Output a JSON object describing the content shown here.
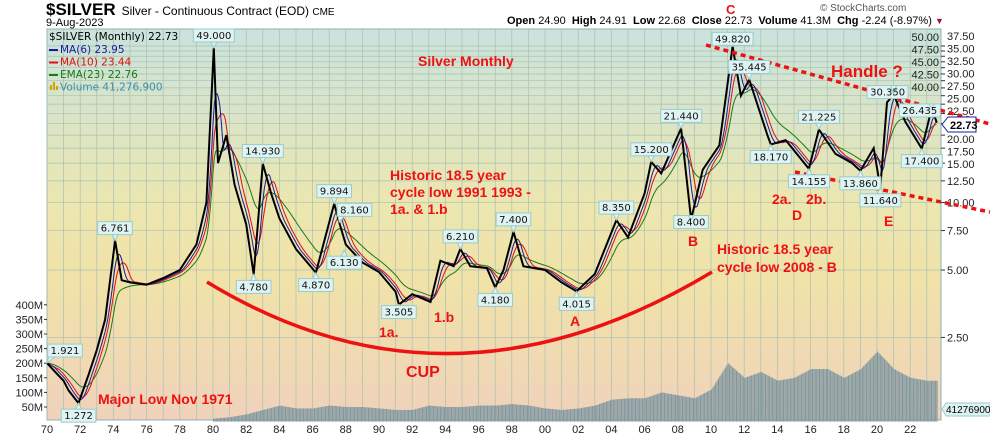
{
  "header": {
    "symbol": "$SILVER",
    "description": "Silver - Continuous Contract (EOD)",
    "exchange": "CME",
    "date": "9-Aug-2023",
    "brand": "© StockCharts.com",
    "open_label": "Open",
    "open": "24.90",
    "high_label": "High",
    "high": "24.91",
    "low_label": "Low",
    "low": "22.68",
    "close_label": "Close",
    "close": "22.73",
    "volume_label": "Volume",
    "volume": "41.3M",
    "chg_label": "Chg",
    "chg": "-2.24 (-8.97%)"
  },
  "legend": {
    "main": "$SILVER (Monthly) 22.73",
    "ma6": "MA(6) 23.95",
    "ma10": "MA(10) 23.44",
    "ema23": "EMA(23) 22.76",
    "volume": "Volume 41,276,900"
  },
  "colors": {
    "price": "#000000",
    "ma6": "#1a1aa0",
    "ma10": "#e01010",
    "ema23": "#1a7a1a",
    "volume": "#7f97a0",
    "annotation": "#ee1111"
  },
  "annotations": {
    "title": "Silver Monthly",
    "handle": "Handle ?",
    "historic1_l1": "Historic 18.5 year",
    "historic1_l2": "cycle low 1991 1993 -",
    "historic1_l3": "1a. & 1.b",
    "historic2_l1": "Historic 18.5 year",
    "historic2_l2": "cycle low 2008 - B",
    "cup": "CUP",
    "major_low": "Major Low Nov 1971",
    "la": "1a.",
    "lb": "1.b",
    "A": "A",
    "B": "B",
    "C": "C",
    "D": "D",
    "E": "E",
    "l2a": "2a.",
    "l2b": "2b."
  },
  "chart_data": {
    "type": "line",
    "scale": "log",
    "grid": true,
    "x_ticks": [
      "70",
      "72",
      "74",
      "76",
      "78",
      "80",
      "82",
      "84",
      "86",
      "88",
      "90",
      "92",
      "94",
      "96",
      "98",
      "00",
      "02",
      "04",
      "06",
      "08",
      "10",
      "12",
      "14",
      "16",
      "18",
      "20",
      "22"
    ],
    "y_ticks": [
      "50.00",
      "47.50",
      "45.00",
      "42.50",
      "40.00",
      "37.50",
      "35.00",
      "32.50",
      "30.00",
      "27.50",
      "25.00",
      "22.50",
      "20.00",
      "17.50",
      "15.00",
      "12.50",
      "10.00",
      "7.50",
      "5.00",
      "2.50"
    ],
    "volume_ticks": [
      "400M",
      "350M",
      "300M",
      "250M",
      "200M",
      "150M",
      "100M",
      "50M"
    ],
    "last_price_label": "22.73",
    "last_volume_label": "41276900",
    "price_path": [
      [
        1970.0,
        1.921
      ],
      [
        1970.5,
        1.75
      ],
      [
        1971.0,
        1.6
      ],
      [
        1971.3,
        1.45
      ],
      [
        1971.9,
        1.272
      ],
      [
        1972.5,
        1.7
      ],
      [
        1973.0,
        2.2
      ],
      [
        1973.5,
        3.0
      ],
      [
        1974.1,
        6.761
      ],
      [
        1974.5,
        4.5
      ],
      [
        1975,
        4.4
      ],
      [
        1976,
        4.3
      ],
      [
        1977,
        4.6
      ],
      [
        1978,
        5.0
      ],
      [
        1979,
        6.5
      ],
      [
        1979.6,
        10
      ],
      [
        1980.05,
        49.0
      ],
      [
        1980.3,
        15
      ],
      [
        1980.8,
        20
      ],
      [
        1981.3,
        12
      ],
      [
        1982.0,
        8
      ],
      [
        1982.45,
        4.78
      ],
      [
        1983.0,
        14.93
      ],
      [
        1983.5,
        11
      ],
      [
        1984,
        8.5
      ],
      [
        1985,
        6.2
      ],
      [
        1986.2,
        4.87
      ],
      [
        1987.3,
        9.894
      ],
      [
        1987.6,
        8.16
      ],
      [
        1988,
        6.5
      ],
      [
        1989,
        5.4
      ],
      [
        1990,
        4.9
      ],
      [
        1991,
        4.0
      ],
      [
        1991.2,
        3.505
      ],
      [
        1992,
        3.9
      ],
      [
        1993.1,
        3.6
      ],
      [
        1993.7,
        5.5
      ],
      [
        1994.5,
        5.2
      ],
      [
        1994.9,
        6.21
      ],
      [
        1995.5,
        5.2
      ],
      [
        1996.5,
        5.1
      ],
      [
        1997.0,
        4.18
      ],
      [
        1997.5,
        5.0
      ],
      [
        1998.1,
        7.4
      ],
      [
        1998.7,
        5.2
      ],
      [
        2000,
        5.0
      ],
      [
        2001,
        4.4
      ],
      [
        2001.9,
        4.015
      ],
      [
        2003,
        4.8
      ],
      [
        2004.3,
        8.35
      ],
      [
        2005,
        7
      ],
      [
        2006,
        11
      ],
      [
        2006.4,
        15.2
      ],
      [
        2007,
        13.5
      ],
      [
        2008.2,
        21.44
      ],
      [
        2008.8,
        8.4
      ],
      [
        2009.5,
        14
      ],
      [
        2010.5,
        18
      ],
      [
        2011.3,
        49.82
      ],
      [
        2011.8,
        30
      ],
      [
        2012.3,
        35.445
      ],
      [
        2013.4,
        20
      ],
      [
        2013.6,
        18.17
      ],
      [
        2014.5,
        19
      ],
      [
        2015.9,
        14.155
      ],
      [
        2016.5,
        21.225
      ],
      [
        2017.5,
        16.5
      ],
      [
        2018.5,
        15
      ],
      [
        2019.0,
        13.86
      ],
      [
        2019.8,
        17.5
      ],
      [
        2020.2,
        11.64
      ],
      [
        2020.6,
        28
      ],
      [
        2021.0,
        30.35
      ],
      [
        2021.7,
        23
      ],
      [
        2022.7,
        17.4
      ],
      [
        2023.3,
        26.435
      ],
      [
        2023.6,
        22.73
      ]
    ],
    "callouts": [
      {
        "label": "1.921",
        "x": 1970.0,
        "y": 1.921,
        "pos": "above"
      },
      {
        "label": "1.272",
        "x": 1971.9,
        "y": 1.272,
        "pos": "below"
      },
      {
        "label": "6.761",
        "x": 1974.1,
        "y": 6.761,
        "pos": "above"
      },
      {
        "label": "49.000",
        "x": 1980.05,
        "y": 49.0,
        "pos": "above"
      },
      {
        "label": "4.780",
        "x": 1982.45,
        "y": 4.78,
        "pos": "below"
      },
      {
        "label": "14.930",
        "x": 1983.0,
        "y": 14.93,
        "pos": "above"
      },
      {
        "label": "4.870",
        "x": 1986.2,
        "y": 4.87,
        "pos": "below"
      },
      {
        "label": "9.894",
        "x": 1987.3,
        "y": 9.894,
        "pos": "above"
      },
      {
        "label": "8.160",
        "x": 1987.6,
        "y": 8.16,
        "pos": "aboveR"
      },
      {
        "label": "6.130",
        "x": 1987.9,
        "y": 6.13,
        "pos": "below"
      },
      {
        "label": "3.505",
        "x": 1991.2,
        "y": 3.505,
        "pos": "below"
      },
      {
        "label": "6.210",
        "x": 1994.9,
        "y": 6.21,
        "pos": "above"
      },
      {
        "label": "4.180",
        "x": 1997.0,
        "y": 4.18,
        "pos": "below"
      },
      {
        "label": "7.400",
        "x": 1998.1,
        "y": 7.4,
        "pos": "above"
      },
      {
        "label": "4.015",
        "x": 2001.9,
        "y": 4.015,
        "pos": "below"
      },
      {
        "label": "8.350",
        "x": 2004.3,
        "y": 8.35,
        "pos": "above"
      },
      {
        "label": "15.200",
        "x": 2006.4,
        "y": 15.2,
        "pos": "above"
      },
      {
        "label": "21.440",
        "x": 2008.2,
        "y": 21.44,
        "pos": "above"
      },
      {
        "label": "8.400",
        "x": 2008.8,
        "y": 8.4,
        "pos": "below"
      },
      {
        "label": "49.820",
        "x": 2011.3,
        "y": 49.82,
        "pos": "above"
      },
      {
        "label": "35.445",
        "x": 2012.3,
        "y": 35.445,
        "pos": "above"
      },
      {
        "label": "18.170",
        "x": 2013.6,
        "y": 18.17,
        "pos": "below"
      },
      {
        "label": "21.225",
        "x": 2016.5,
        "y": 21.225,
        "pos": "above"
      },
      {
        "label": "14.155",
        "x": 2015.9,
        "y": 14.155,
        "pos": "below"
      },
      {
        "label": "13.860",
        "x": 2019.0,
        "y": 13.86,
        "pos": "below"
      },
      {
        "label": "11.640",
        "x": 2020.2,
        "y": 11.64,
        "pos": "below"
      },
      {
        "label": "30.350",
        "x": 2021.0,
        "y": 30.35,
        "pos": "above"
      },
      {
        "label": "17.400",
        "x": 2022.7,
        "y": 17.4,
        "pos": "below"
      },
      {
        "label": "26.435",
        "x": 2023.3,
        "y": 26.435,
        "pos": "above"
      }
    ],
    "volume_yearly_millions": [
      [
        1980,
        10
      ],
      [
        1981,
        15
      ],
      [
        1982,
        25
      ],
      [
        1983,
        40
      ],
      [
        1984,
        55
      ],
      [
        1985,
        45
      ],
      [
        1986,
        45
      ],
      [
        1987,
        55
      ],
      [
        1988,
        50
      ],
      [
        1989,
        50
      ],
      [
        1990,
        45
      ],
      [
        1991,
        40
      ],
      [
        1992,
        40
      ],
      [
        1993,
        55
      ],
      [
        1994,
        50
      ],
      [
        1995,
        50
      ],
      [
        1996,
        55
      ],
      [
        1997,
        55
      ],
      [
        1998,
        60
      ],
      [
        1999,
        55
      ],
      [
        2000,
        45
      ],
      [
        2001,
        40
      ],
      [
        2002,
        45
      ],
      [
        2003,
        55
      ],
      [
        2004,
        75
      ],
      [
        2005,
        80
      ],
      [
        2006,
        80
      ],
      [
        2007,
        100
      ],
      [
        2008,
        90
      ],
      [
        2009,
        80
      ],
      [
        2010,
        110
      ],
      [
        2011,
        200
      ],
      [
        2012,
        150
      ],
      [
        2013,
        170
      ],
      [
        2014,
        140
      ],
      [
        2015,
        150
      ],
      [
        2016,
        180
      ],
      [
        2017,
        180
      ],
      [
        2018,
        150
      ],
      [
        2019,
        180
      ],
      [
        2020,
        240
      ],
      [
        2021,
        180
      ],
      [
        2022,
        150
      ],
      [
        2023,
        140
      ]
    ]
  }
}
